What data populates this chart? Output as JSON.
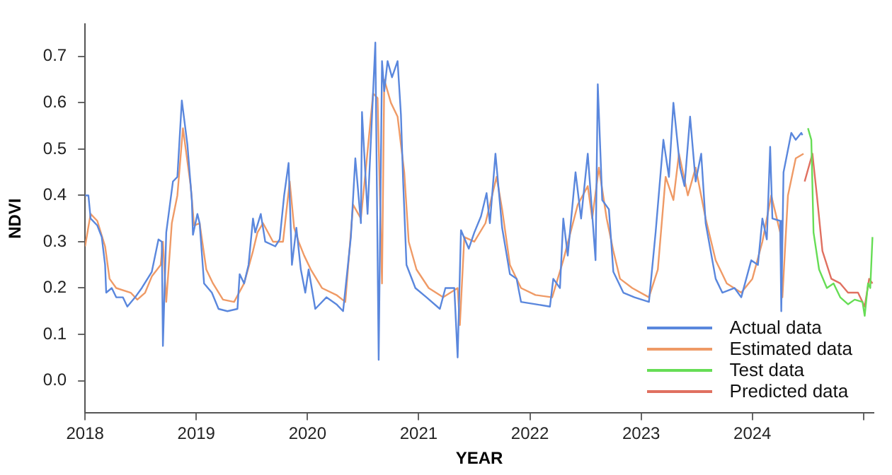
{
  "chart_data": {
    "type": "line",
    "xlabel": "YEAR",
    "ylabel": "NDVI",
    "xlim": [
      2018,
      2025.09
    ],
    "xticks": [
      2018,
      2019,
      2020,
      2021,
      2022,
      2023,
      2024,
      {
        "value": 2025,
        "label": null
      }
    ],
    "ylim": [
      -0.07,
      0.77
    ],
    "yticks": [
      {
        "value": 0,
        "label": "0.0"
      },
      0.1,
      0.2,
      0.3,
      0.4,
      0.5,
      0.6,
      0.7
    ],
    "grid": false,
    "legend": "bottom right",
    "marker": "none",
    "line_style": "solid",
    "series": [
      {
        "name": "Actual data",
        "color": "#5a87dd",
        "x": [
          2018.0,
          2018.03,
          2018.05,
          2018.11,
          2018.15,
          2018.18,
          2018.19,
          2018.24,
          2018.28,
          2018.34,
          2018.38,
          2018.45,
          2018.51,
          2018.6,
          2018.66,
          2018.69,
          2018.7,
          2018.73,
          2018.79,
          2018.83,
          2018.87,
          2018.92,
          2018.96,
          2018.97,
          2019.01,
          2019.03,
          2019.07,
          2019.14,
          2019.2,
          2019.28,
          2019.37,
          2019.39,
          2019.43,
          2019.47,
          2019.51,
          2019.53,
          2019.58,
          2019.62,
          2019.71,
          2019.75,
          2019.79,
          2019.83,
          2019.86,
          2019.9,
          2019.94,
          2019.98,
          2020.01,
          2020.07,
          2020.17,
          2020.26,
          2020.32,
          2020.39,
          2020.43,
          2020.48,
          2020.49,
          2020.54,
          2020.61,
          2020.64,
          2020.67,
          2020.69,
          2020.72,
          2020.76,
          2020.81,
          2020.84,
          2020.86,
          2020.89,
          2020.97,
          2021.07,
          2021.19,
          2021.24,
          2021.32,
          2021.35,
          2021.38,
          2021.45,
          2021.5,
          2021.56,
          2021.61,
          2021.64,
          2021.69,
          2021.75,
          2021.82,
          2021.88,
          2021.92,
          2022.05,
          2022.18,
          2022.21,
          2022.27,
          2022.3,
          2022.34,
          2022.41,
          2022.46,
          2022.52,
          2022.59,
          2022.61,
          2022.65,
          2022.71,
          2022.75,
          2022.84,
          2022.94,
          2023.07,
          2023.13,
          2023.2,
          2023.25,
          2023.29,
          2023.35,
          2023.39,
          2023.44,
          2023.49,
          2023.54,
          2023.58,
          2023.67,
          2023.73,
          2023.84,
          2023.9,
          2023.99,
          2024.05,
          2024.09,
          2024.13,
          2024.16,
          2024.18,
          2024.25,
          2024.26,
          2024.28,
          2024.35,
          2024.39,
          2024.44,
          2024.45
        ],
        "values": [
          0.4,
          0.4,
          0.35,
          0.335,
          0.31,
          0.25,
          0.19,
          0.2,
          0.18,
          0.18,
          0.16,
          0.18,
          0.2,
          0.235,
          0.305,
          0.3,
          0.075,
          0.32,
          0.43,
          0.44,
          0.605,
          0.51,
          0.39,
          0.315,
          0.36,
          0.34,
          0.21,
          0.19,
          0.155,
          0.15,
          0.155,
          0.23,
          0.21,
          0.25,
          0.35,
          0.32,
          0.36,
          0.3,
          0.29,
          0.305,
          0.4,
          0.47,
          0.25,
          0.33,
          0.24,
          0.19,
          0.24,
          0.155,
          0.18,
          0.165,
          0.15,
          0.31,
          0.48,
          0.34,
          0.58,
          0.36,
          0.73,
          0.045,
          0.69,
          0.625,
          0.69,
          0.655,
          0.69,
          0.575,
          0.43,
          0.25,
          0.2,
          0.18,
          0.155,
          0.2,
          0.2,
          0.05,
          0.325,
          0.285,
          0.32,
          0.355,
          0.405,
          0.34,
          0.49,
          0.33,
          0.23,
          0.22,
          0.17,
          0.165,
          0.16,
          0.22,
          0.2,
          0.35,
          0.27,
          0.45,
          0.35,
          0.49,
          0.26,
          0.64,
          0.39,
          0.37,
          0.235,
          0.19,
          0.18,
          0.17,
          0.32,
          0.52,
          0.44,
          0.6,
          0.46,
          0.42,
          0.57,
          0.43,
          0.49,
          0.34,
          0.22,
          0.19,
          0.2,
          0.18,
          0.26,
          0.25,
          0.35,
          0.305,
          0.505,
          0.35,
          0.345,
          0.15,
          0.45,
          0.535,
          0.52,
          0.535,
          0.53
        ]
      },
      {
        "name": "Estimated data",
        "color": "#ef9a66",
        "x": [
          2018.0,
          2018.05,
          2018.11,
          2018.18,
          2018.22,
          2018.28,
          2018.41,
          2018.47,
          2018.54,
          2018.6,
          2018.68,
          2018.7,
          2018.73,
          2018.78,
          2018.83,
          2018.88,
          2018.95,
          2018.98,
          2019.03,
          2019.09,
          2019.15,
          2019.24,
          2019.34,
          2019.43,
          2019.51,
          2019.55,
          2019.6,
          2019.69,
          2019.78,
          2019.84,
          2019.88,
          2019.92,
          2019.97,
          2020.03,
          2020.13,
          2020.26,
          2020.34,
          2020.41,
          2020.48,
          2020.53,
          2020.59,
          2020.63,
          2020.67,
          2020.69,
          2020.75,
          2020.81,
          2020.87,
          2020.91,
          2020.98,
          2021.09,
          2021.22,
          2021.35,
          2021.37,
          2021.41,
          2021.5,
          2021.6,
          2021.7,
          2021.75,
          2021.82,
          2021.92,
          2022.05,
          2022.2,
          2022.3,
          2022.43,
          2022.52,
          2022.56,
          2022.62,
          2022.69,
          2022.75,
          2022.81,
          2022.92,
          2023.07,
          2023.15,
          2023.22,
          2023.29,
          2023.34,
          2023.42,
          2023.49,
          2023.58,
          2023.67,
          2023.77,
          2023.9,
          2024.0,
          2024.09,
          2024.17,
          2024.25,
          2024.27,
          2024.32,
          2024.39,
          2024.46
        ],
        "values": [
          0.29,
          0.36,
          0.345,
          0.29,
          0.22,
          0.2,
          0.19,
          0.175,
          0.19,
          0.225,
          0.25,
          0.3,
          0.17,
          0.34,
          0.4,
          0.545,
          0.42,
          0.335,
          0.34,
          0.24,
          0.21,
          0.175,
          0.17,
          0.21,
          0.28,
          0.32,
          0.34,
          0.3,
          0.3,
          0.43,
          0.33,
          0.3,
          0.27,
          0.24,
          0.2,
          0.185,
          0.17,
          0.38,
          0.35,
          0.47,
          0.62,
          0.61,
          0.21,
          0.65,
          0.6,
          0.57,
          0.45,
          0.3,
          0.24,
          0.2,
          0.18,
          0.2,
          0.12,
          0.31,
          0.3,
          0.34,
          0.44,
          0.37,
          0.25,
          0.2,
          0.185,
          0.18,
          0.26,
          0.38,
          0.42,
          0.35,
          0.46,
          0.35,
          0.28,
          0.22,
          0.2,
          0.18,
          0.24,
          0.44,
          0.39,
          0.49,
          0.4,
          0.46,
          0.35,
          0.26,
          0.21,
          0.19,
          0.22,
          0.3,
          0.4,
          0.32,
          0.18,
          0.4,
          0.48,
          0.49
        ]
      },
      {
        "name": "Test data",
        "color": "#66dd55",
        "x": [
          2024.5,
          2024.53,
          2024.55,
          2024.6,
          2024.67,
          2024.73,
          2024.79,
          2024.86,
          2024.92,
          2024.99,
          2025.01,
          2025.04,
          2025.06,
          2025.08
        ],
        "values": [
          0.545,
          0.52,
          0.32,
          0.24,
          0.2,
          0.21,
          0.18,
          0.165,
          0.175,
          0.17,
          0.14,
          0.21,
          0.2,
          0.31
        ]
      },
      {
        "name": "Predicted data",
        "color": "#e07060",
        "x": [
          2024.47,
          2024.54,
          2024.58,
          2024.63,
          2024.71,
          2024.79,
          2024.86,
          2024.95,
          2025.01,
          2025.05,
          2025.08
        ],
        "values": [
          0.43,
          0.49,
          0.4,
          0.28,
          0.22,
          0.21,
          0.19,
          0.19,
          0.16,
          0.22,
          0.21
        ]
      }
    ]
  }
}
